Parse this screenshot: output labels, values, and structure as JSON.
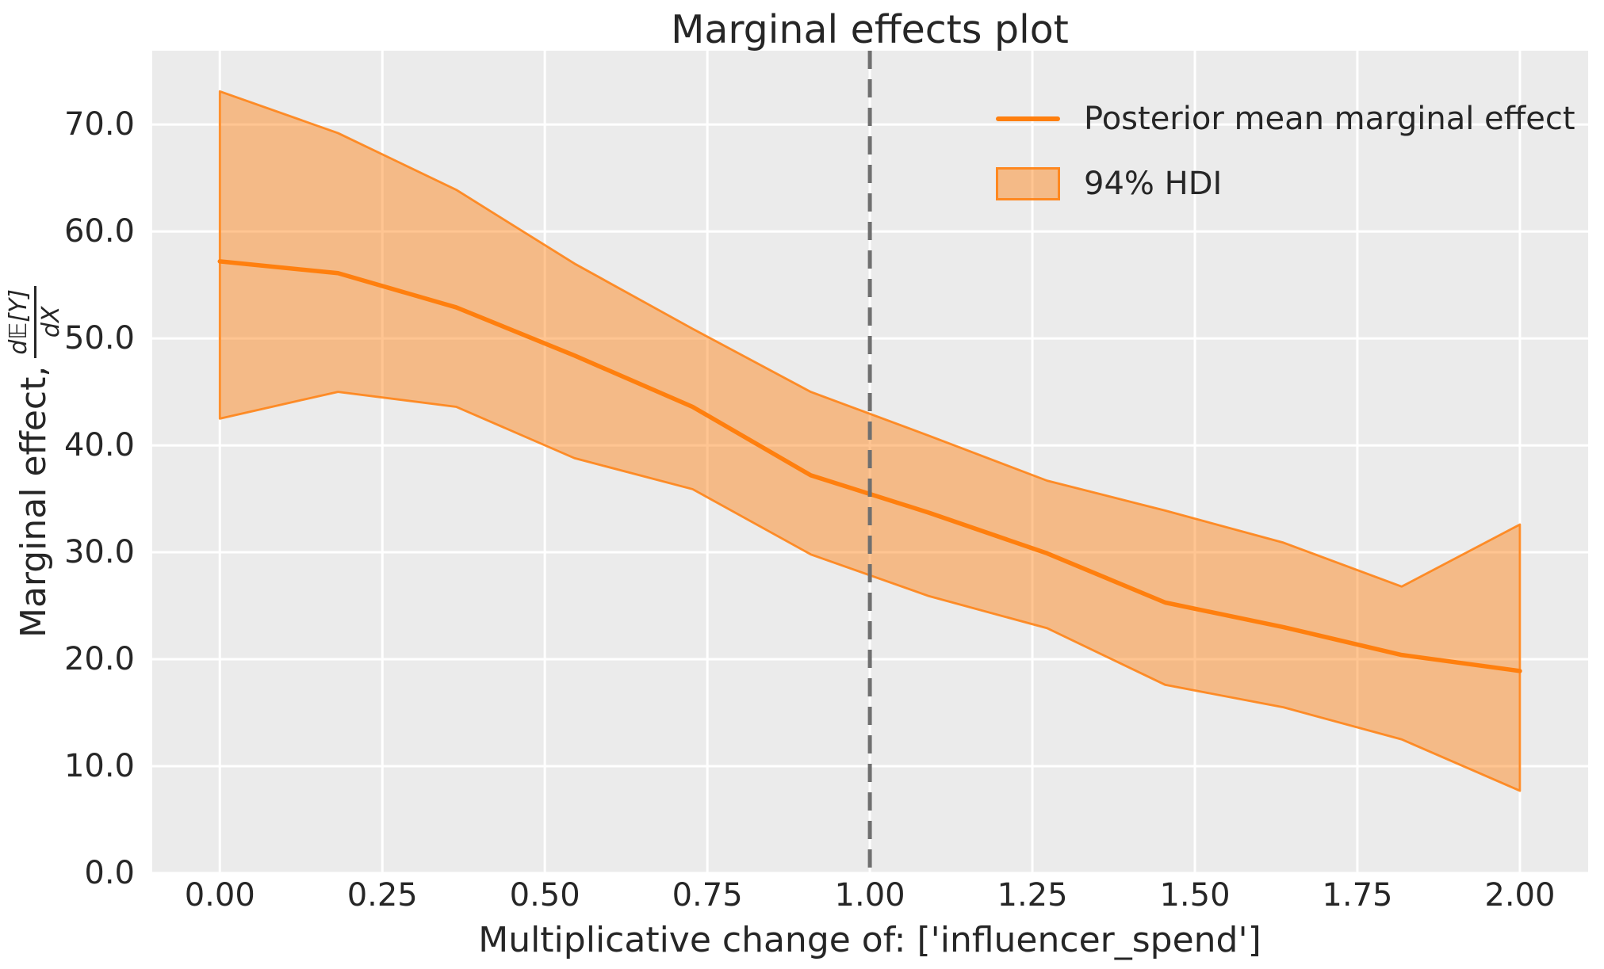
{
  "figure": {
    "background_color": "#ffffff",
    "plot_background_color": "#ebebeb",
    "gridline_color": "#ffffff",
    "text_color": "#262626",
    "accent_color": "#ff7f0e",
    "band_fill_color": "rgba(255,127,14,0.45)",
    "band_edge_color": "rgba(255,127,14,0.85)",
    "reference_line_color": "#6f6f6f"
  },
  "chart_data": {
    "type": "line",
    "title": "Marginal effects plot",
    "xlabel": "Multiplicative change of: ['influencer_spend']",
    "ylabel_prefix": "Marginal effect,",
    "ylabel_frac_numerator": "d𝔼[Y]",
    "ylabel_frac_denominator": "dX",
    "x": [
      0.0,
      0.1818,
      0.3636,
      0.5455,
      0.7273,
      0.9091,
      1.0909,
      1.2727,
      1.4545,
      1.6364,
      1.8182,
      2.0
    ],
    "series": [
      {
        "name": "Posterior mean marginal effect",
        "values": [
          57.2,
          56.1,
          52.9,
          48.4,
          43.6,
          37.2,
          33.7,
          29.9,
          25.3,
          23.0,
          20.4,
          18.9
        ]
      },
      {
        "name": "94% HDI upper",
        "values": [
          73.1,
          69.2,
          63.9,
          57.0,
          50.9,
          45.0,
          40.9,
          36.7,
          33.9,
          30.9,
          26.8,
          32.6
        ]
      },
      {
        "name": "94% HDI lower",
        "values": [
          42.5,
          45.0,
          43.6,
          38.8,
          35.9,
          29.8,
          25.9,
          22.9,
          17.6,
          15.5,
          12.5,
          7.7
        ]
      }
    ],
    "reference_line_x": 1.0,
    "xlim": [
      -0.104,
      2.105
    ],
    "ylim": [
      0,
      76.9
    ],
    "grid": true,
    "xticks": {
      "values": [
        0.0,
        0.25,
        0.5,
        0.75,
        1.0,
        1.25,
        1.5,
        1.75,
        2.0
      ],
      "labels": [
        "0.00",
        "0.25",
        "0.50",
        "0.75",
        "1.00",
        "1.25",
        "1.50",
        "1.75",
        "2.00"
      ]
    },
    "yticks": {
      "values": [
        0,
        10,
        20,
        30,
        40,
        50,
        60,
        70
      ],
      "labels": [
        "0.0",
        "10.0",
        "20.0",
        "30.0",
        "40.0",
        "50.0",
        "60.0",
        "70.0"
      ]
    },
    "legend": {
      "position": "upper right",
      "entries": [
        {
          "label": "Posterior mean marginal effect",
          "swatch": "line"
        },
        {
          "label": "94% HDI",
          "swatch": "patch"
        }
      ]
    }
  }
}
